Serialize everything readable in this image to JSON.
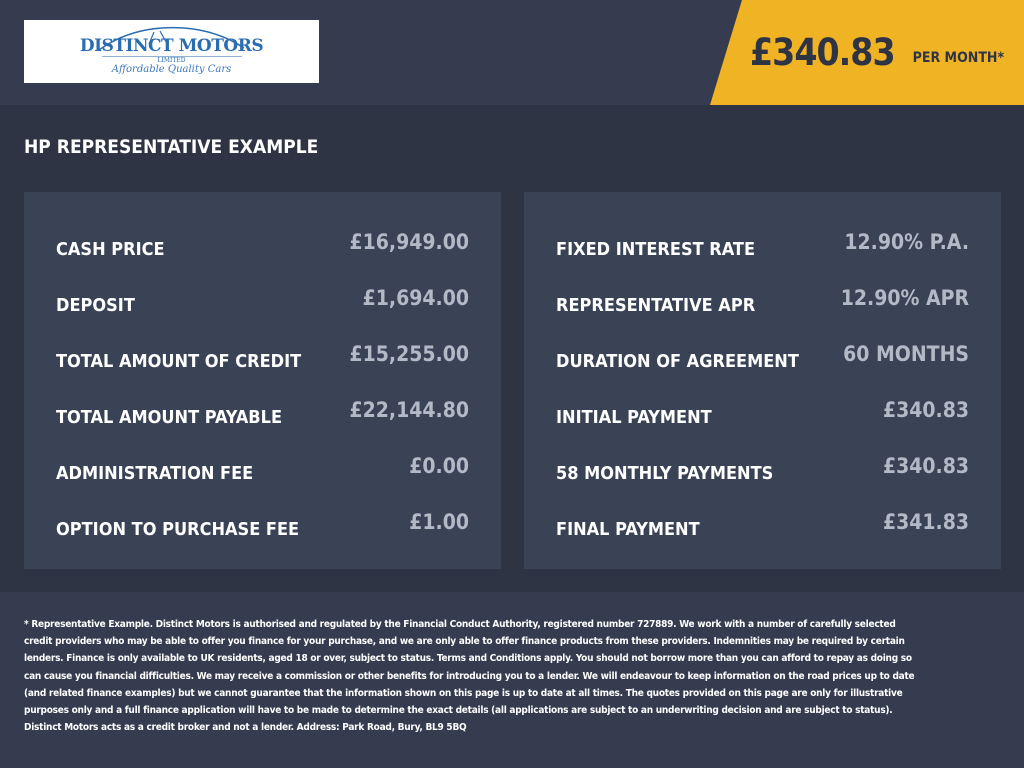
{
  "header": {
    "logo": {
      "name": "DISTINCT MOTORS",
      "suffix": "LIMITED",
      "tagline": "Affordable Quality Cars"
    },
    "monthly_price": "£340.83",
    "per_month_label": "PER MONTH*",
    "accent_color": "#f0b323"
  },
  "section_title": "HP REPRESENTATIVE EXAMPLE",
  "left_panel": [
    {
      "label": "CASH PRICE",
      "value": "£16,949.00"
    },
    {
      "label": "DEPOSIT",
      "value": "£1,694.00"
    },
    {
      "label": "TOTAL AMOUNT OF CREDIT",
      "value": "£15,255.00"
    },
    {
      "label": "TOTAL AMOUNT PAYABLE",
      "value": "£22,144.80"
    },
    {
      "label": "ADMINISTRATION FEE",
      "value": "£0.00"
    },
    {
      "label": "OPTION TO PURCHASE FEE",
      "value": "£1.00"
    }
  ],
  "right_panel": [
    {
      "label": "FIXED INTEREST RATE",
      "value": "12.90% P.A."
    },
    {
      "label": "REPRESENTATIVE APR",
      "value": "12.90% APR"
    },
    {
      "label": "DURATION OF AGREEMENT",
      "value": "60 MONTHS"
    },
    {
      "label": "INITIAL PAYMENT",
      "value": "£340.83"
    },
    {
      "label": "58 MONTHLY PAYMENTS",
      "value": "£340.83"
    },
    {
      "label": "FINAL PAYMENT",
      "value": "£341.83"
    }
  ],
  "disclaimer": "* Representative Example. Distinct Motors is authorised and regulated by the Financial Conduct Authority, registered number 727889. We work with a number of carefully selected credit providers who may be able to offer you finance for your purchase, and we are only able to offer finance products from these providers. Indemnities may be required by certain lenders. Finance is only available to UK residents, aged 18 or over, subject to status. Terms and Conditions apply. You should not borrow more than you can afford to repay as doing so can cause you financial difficulties. We may receive a commission or other benefits for introducing you to a lender. We will endeavour to keep information on the road prices up to date (and related finance examples) but we cannot guarantee that the information shown on this page is up to date at all times. The quotes provided on this page are only for illustrative purposes only and a full finance application will have to be made to determine the exact details (all applications are subject to an underwriting decision and are subject to status). Distinct Motors acts as a credit broker and not a lender. Address: Park Road, Bury, BL9 5BQ"
}
